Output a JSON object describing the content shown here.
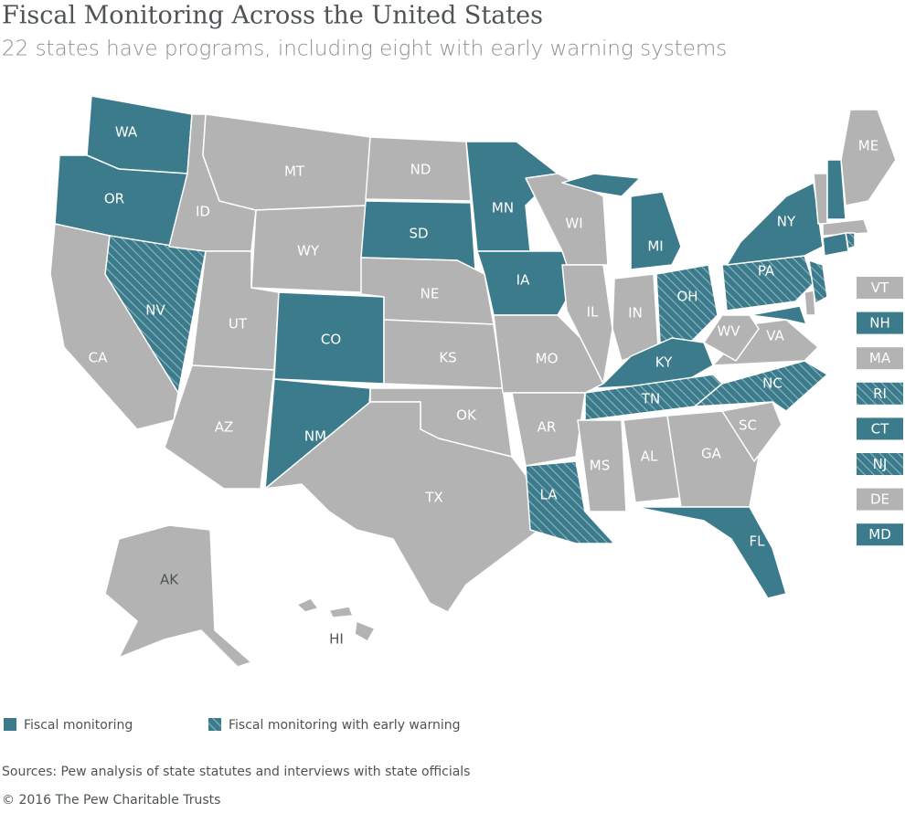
{
  "title": "Fiscal Monitoring Across the United States",
  "subtitle": "22 states have programs, including eight with early warning systems",
  "colors": {
    "none": "#b3b3b3",
    "monitoring": "#3b7b8b",
    "early_warning": "#3b7b8b"
  },
  "legend": [
    {
      "label": "Fiscal monitoring",
      "status": "monitoring"
    },
    {
      "label": "Fiscal monitoring with early warning",
      "status": "early_warning"
    }
  ],
  "states": [
    {
      "label": "WA",
      "status": "monitoring"
    },
    {
      "label": "OR",
      "status": "monitoring"
    },
    {
      "label": "CA",
      "status": "none"
    },
    {
      "label": "NV",
      "status": "early_warning"
    },
    {
      "label": "ID",
      "status": "none"
    },
    {
      "label": "MT",
      "status": "none"
    },
    {
      "label": "WY",
      "status": "none"
    },
    {
      "label": "UT",
      "status": "none"
    },
    {
      "label": "AZ",
      "status": "none"
    },
    {
      "label": "CO",
      "status": "monitoring"
    },
    {
      "label": "NM",
      "status": "monitoring"
    },
    {
      "label": "ND",
      "status": "none"
    },
    {
      "label": "SD",
      "status": "monitoring"
    },
    {
      "label": "NE",
      "status": "none"
    },
    {
      "label": "KS",
      "status": "none"
    },
    {
      "label": "OK",
      "status": "none"
    },
    {
      "label": "TX",
      "status": "none"
    },
    {
      "label": "MN",
      "status": "monitoring"
    },
    {
      "label": "IA",
      "status": "monitoring"
    },
    {
      "label": "MO",
      "status": "none"
    },
    {
      "label": "AR",
      "status": "none"
    },
    {
      "label": "LA",
      "status": "early_warning"
    },
    {
      "label": "WI",
      "status": "none"
    },
    {
      "label": "IL",
      "status": "none"
    },
    {
      "label": "MI",
      "status": "monitoring"
    },
    {
      "label": "IN",
      "status": "none"
    },
    {
      "label": "OH",
      "status": "early_warning"
    },
    {
      "label": "KY",
      "status": "monitoring"
    },
    {
      "label": "TN",
      "status": "early_warning"
    },
    {
      "label": "MS",
      "status": "none"
    },
    {
      "label": "AL",
      "status": "none"
    },
    {
      "label": "GA",
      "status": "none"
    },
    {
      "label": "SC",
      "status": "none"
    },
    {
      "label": "NC",
      "status": "early_warning"
    },
    {
      "label": "FL",
      "status": "monitoring"
    },
    {
      "label": "VA",
      "status": "none"
    },
    {
      "label": "WV",
      "status": "none"
    },
    {
      "label": "PA",
      "status": "early_warning"
    },
    {
      "label": "NY",
      "status": "monitoring"
    },
    {
      "label": "ME",
      "status": "none"
    },
    {
      "label": "AK",
      "status": "none"
    },
    {
      "label": "HI",
      "status": "none"
    }
  ],
  "small_states": [
    {
      "label": "VT",
      "status": "none"
    },
    {
      "label": "NH",
      "status": "monitoring"
    },
    {
      "label": "MA",
      "status": "none"
    },
    {
      "label": "RI",
      "status": "early_warning"
    },
    {
      "label": "CT",
      "status": "monitoring"
    },
    {
      "label": "NJ",
      "status": "early_warning"
    },
    {
      "label": "DE",
      "status": "none"
    },
    {
      "label": "MD",
      "status": "monitoring"
    }
  ],
  "sources": "Sources: Pew analysis of state statutes and interviews with state officials",
  "copyright": "© 2016 The Pew Charitable Trusts"
}
